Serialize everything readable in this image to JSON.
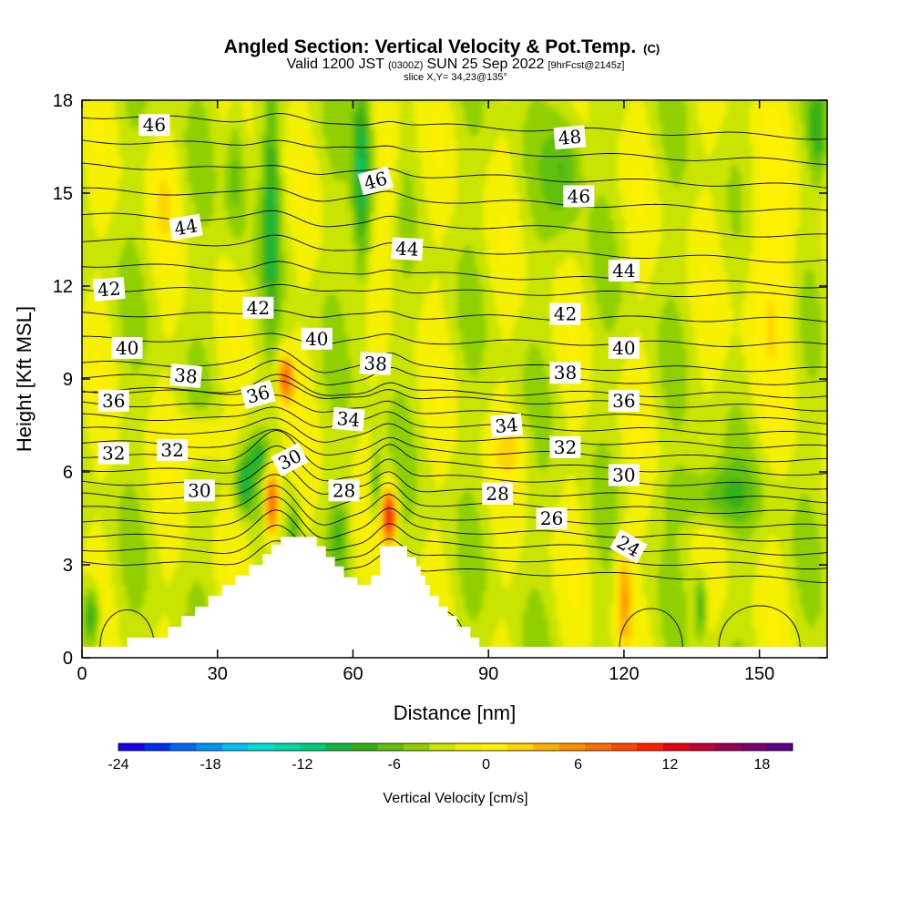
{
  "header": {
    "title": "Angled Section: Vertical Velocity & Pot.Temp.",
    "title_unit": "(C)",
    "valid_prefix": "Valid 1200 JST",
    "valid_utc": "(0300Z)",
    "valid_date": "SUN 25 Sep 2022",
    "forecast": "[9hrFcst@2145z]",
    "slice": "slice X,Y= 34,23@135°"
  },
  "chart_data": {
    "type": "heatmap",
    "xlabel": "Distance [nm]",
    "ylabel": "Height [Kft MSL]",
    "xlim": [
      0,
      165
    ],
    "ylim": [
      0,
      18
    ],
    "x_ticks": [
      "0",
      "30",
      "60",
      "90",
      "120",
      "150"
    ],
    "y_ticks": [
      "0",
      "3",
      "6",
      "9",
      "12",
      "15",
      "18"
    ],
    "colorbar": {
      "label": "Vertical Velocity [cm/s]",
      "ticks": [
        "-24",
        "-18",
        "-12",
        "-6",
        "0",
        "6",
        "12",
        "18"
      ],
      "tick_values": [
        -24,
        -18,
        -12,
        -6,
        0,
        6,
        12,
        18
      ],
      "range": [
        -24,
        20
      ],
      "bin_width": 2,
      "colors": [
        "#1800e8",
        "#0030ee",
        "#0068f0",
        "#0096f2",
        "#00c0f0",
        "#00dcd6",
        "#00d8a8",
        "#00cc78",
        "#10b840",
        "#34b014",
        "#60c010",
        "#90d000",
        "#c8e400",
        "#f4f000",
        "#fff000",
        "#ffd400",
        "#ffb000",
        "#ff9000",
        "#ff6e00",
        "#ff4a00",
        "#ff2000",
        "#e40010",
        "#c00030",
        "#9a0050",
        "#7a0070",
        "#5c0088"
      ]
    },
    "terrain": [
      [
        0,
        0.35
      ],
      [
        10,
        0.35
      ],
      [
        10,
        0.65
      ],
      [
        19,
        0.65
      ],
      [
        19,
        1.0
      ],
      [
        22,
        1.0
      ],
      [
        22,
        1.35
      ],
      [
        25,
        1.35
      ],
      [
        25,
        1.65
      ],
      [
        28,
        1.65
      ],
      [
        28,
        2.0
      ],
      [
        31,
        2.0
      ],
      [
        31,
        2.35
      ],
      [
        34,
        2.35
      ],
      [
        34,
        2.65
      ],
      [
        37,
        2.65
      ],
      [
        37,
        3.0
      ],
      [
        40,
        3.0
      ],
      [
        40,
        3.35
      ],
      [
        42,
        3.35
      ],
      [
        42,
        3.65
      ],
      [
        44,
        3.65
      ],
      [
        44,
        3.9
      ],
      [
        52,
        3.9
      ],
      [
        52,
        3.6
      ],
      [
        54,
        3.6
      ],
      [
        54,
        3.25
      ],
      [
        56,
        3.25
      ],
      [
        56,
        2.95
      ],
      [
        58,
        2.95
      ],
      [
        58,
        2.6
      ],
      [
        61,
        2.6
      ],
      [
        61,
        2.35
      ],
      [
        64,
        2.35
      ],
      [
        64,
        2.65
      ],
      [
        66,
        2.65
      ],
      [
        66,
        3.6
      ],
      [
        72,
        3.6
      ],
      [
        72,
        3.25
      ],
      [
        74,
        3.25
      ],
      [
        74,
        2.95
      ],
      [
        75,
        2.95
      ],
      [
        75,
        2.65
      ],
      [
        76,
        2.65
      ],
      [
        76,
        2.35
      ],
      [
        77,
        2.35
      ],
      [
        77,
        2.0
      ],
      [
        79,
        2.0
      ],
      [
        79,
        1.65
      ],
      [
        81,
        1.65
      ],
      [
        81,
        1.35
      ],
      [
        83,
        1.35
      ],
      [
        83,
        1.0
      ],
      [
        86,
        1.0
      ],
      [
        86,
        0.65
      ],
      [
        88,
        0.65
      ],
      [
        88,
        0.35
      ],
      [
        165,
        0.35
      ]
    ],
    "theta_levels": [
      22,
      23,
      24,
      25,
      26,
      27,
      28,
      29,
      30,
      31,
      32,
      33,
      34,
      35,
      36,
      37,
      38,
      39,
      40,
      41,
      42,
      43,
      44,
      45,
      46,
      47,
      48
    ],
    "contour_labels": [
      {
        "text": "46",
        "x": 16,
        "y": 17.2,
        "angle": 0
      },
      {
        "text": "48",
        "x": 108,
        "y": 16.8,
        "angle": 5
      },
      {
        "text": "46",
        "x": 65,
        "y": 15.4,
        "angle": 15
      },
      {
        "text": "46",
        "x": 110,
        "y": 14.9,
        "angle": 0
      },
      {
        "text": "44",
        "x": 23,
        "y": 13.9,
        "angle": 10
      },
      {
        "text": "44",
        "x": 72,
        "y": 13.2,
        "angle": -3
      },
      {
        "text": "44",
        "x": 120,
        "y": 12.5,
        "angle": 0
      },
      {
        "text": "42",
        "x": 6,
        "y": 11.9,
        "angle": 5
      },
      {
        "text": "42",
        "x": 39,
        "y": 11.3,
        "angle": 0
      },
      {
        "text": "42",
        "x": 107,
        "y": 11.1,
        "angle": 0
      },
      {
        "text": "40",
        "x": 10,
        "y": 10.0,
        "angle": 0
      },
      {
        "text": "40",
        "x": 52,
        "y": 10.3,
        "angle": 0
      },
      {
        "text": "40",
        "x": 120,
        "y": 10.0,
        "angle": 0
      },
      {
        "text": "38",
        "x": 23,
        "y": 9.1,
        "angle": -5
      },
      {
        "text": "38",
        "x": 65,
        "y": 9.5,
        "angle": -3
      },
      {
        "text": "38",
        "x": 107,
        "y": 9.2,
        "angle": 0
      },
      {
        "text": "36",
        "x": 7,
        "y": 8.3,
        "angle": 0
      },
      {
        "text": "36",
        "x": 39,
        "y": 8.5,
        "angle": 15
      },
      {
        "text": "36",
        "x": 120,
        "y": 8.3,
        "angle": 0
      },
      {
        "text": "34",
        "x": 59,
        "y": 7.7,
        "angle": -5
      },
      {
        "text": "34",
        "x": 94,
        "y": 7.5,
        "angle": 5
      },
      {
        "text": "32",
        "x": 7,
        "y": 6.6,
        "angle": 0
      },
      {
        "text": "32",
        "x": 20,
        "y": 6.7,
        "angle": 0
      },
      {
        "text": "32",
        "x": 107,
        "y": 6.8,
        "angle": 0
      },
      {
        "text": "30",
        "x": 46,
        "y": 6.4,
        "angle": 28
      },
      {
        "text": "30",
        "x": 120,
        "y": 5.9,
        "angle": 0
      },
      {
        "text": "30",
        "x": 26,
        "y": 5.4,
        "angle": 0
      },
      {
        "text": "28",
        "x": 58,
        "y": 5.4,
        "angle": 0
      },
      {
        "text": "28",
        "x": 92,
        "y": 5.3,
        "angle": 0
      },
      {
        "text": "26",
        "x": 104,
        "y": 4.5,
        "angle": 0
      },
      {
        "text": "24",
        "x": 121,
        "y": 3.6,
        "angle": -30
      }
    ]
  }
}
